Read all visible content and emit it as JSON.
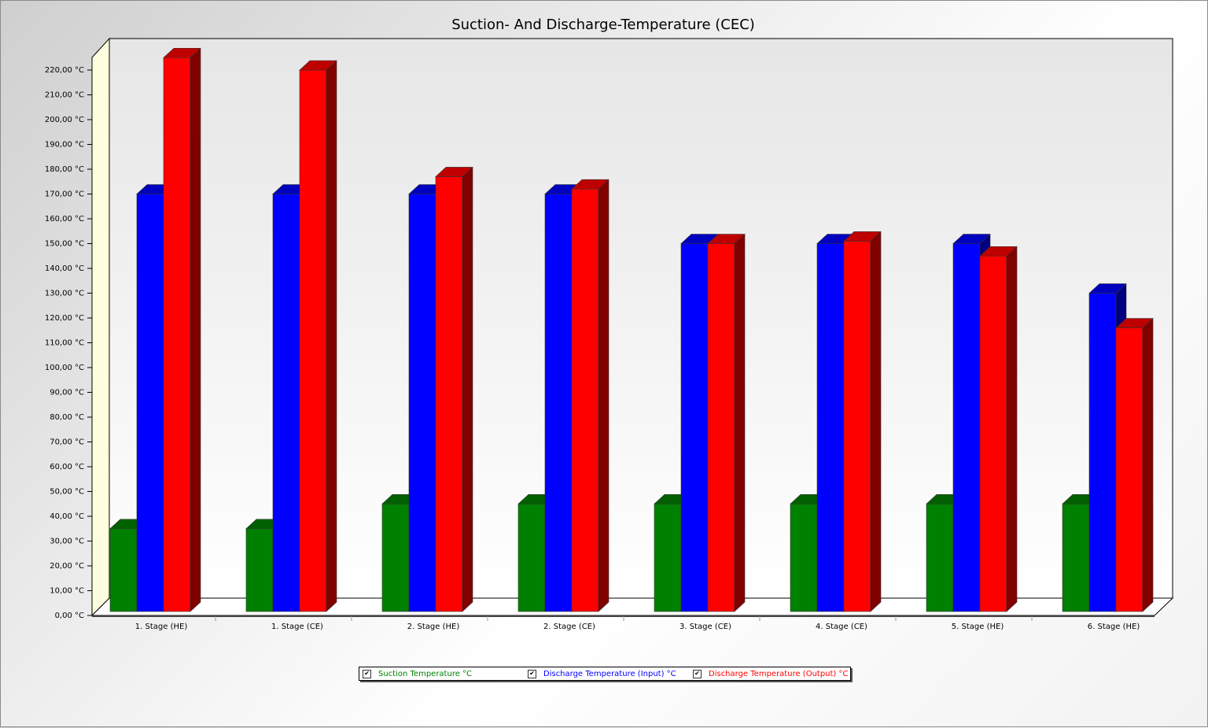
{
  "chart_data": {
    "type": "bar",
    "title": "Suction- And Discharge-Temperature (CEC)",
    "categories": [
      "1. Stage (HE)",
      "1. Stage (CE)",
      "2. Stage (HE)",
      "2. Stage (CE)",
      "3. Stage (CE)",
      "4. Stage (CE)",
      "5. Stage (HE)",
      "6. Stage (HE)"
    ],
    "series": [
      {
        "name": "Suction Temperature °C",
        "color": "#008000",
        "values": [
          35,
          35,
          45,
          45,
          45,
          45,
          45,
          45
        ]
      },
      {
        "name": "Discharge Temperature (Input) °C",
        "color": "#0000ff",
        "values": [
          170,
          170,
          170,
          170,
          150,
          150,
          150,
          130
        ]
      },
      {
        "name": "Discharge Temperature (Output) °C",
        "color": "#ff0000",
        "values": [
          225,
          220,
          177,
          172,
          150,
          151,
          145,
          116
        ]
      }
    ],
    "ylim": [
      0,
      220
    ],
    "ytick_step": 10,
    "ytick_suffix": " °C",
    "three_d": true,
    "legend_position": "bottom",
    "wall_color": "#ffffe0",
    "legend_check": "✔"
  }
}
